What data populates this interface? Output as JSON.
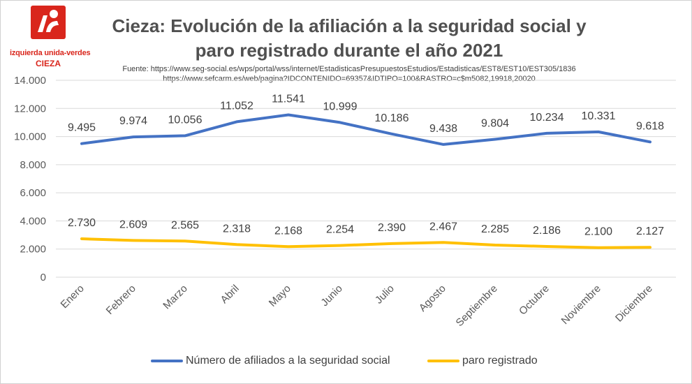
{
  "logo": {
    "line1": "izquierda unida-verdes",
    "line2": "CIEZA"
  },
  "chart_data": {
    "type": "line",
    "title": "Cieza: Evolución de la afiliación a la seguridad social y paro registrado durante el año 2021",
    "subtitle": [
      "Fuente: https://www.seg-social.es/wps/portal/wss/internet/EstadisticasPresupuestosEstudios/Estadisticas/EST8/EST10/EST305/1836",
      "https://www.sefcarm.es/web/pagina?IDCONTENIDO=69357&IDTIPO=100&RASTRO=c$m5082,19918,20020"
    ],
    "categories": [
      "Enero",
      "Febrero",
      "Marzo",
      "Abril",
      "Mayo",
      "Junio",
      "Julio",
      "Agosto",
      "Septiembre",
      "Octubre",
      "Noviembre",
      "Diciembre"
    ],
    "series": [
      {
        "name": "Número de afiliados a la seguridad social",
        "color": "#4472c4",
        "values": [
          9495,
          9974,
          10056,
          11052,
          11541,
          10999,
          10186,
          9438,
          9804,
          10234,
          10331,
          9618
        ],
        "labels": [
          "9.495",
          "9.974",
          "10.056",
          "11.052",
          "11.541",
          "10.999",
          "10.186",
          "9.438",
          "9.804",
          "10.234",
          "10.331",
          "9.618"
        ]
      },
      {
        "name": "paro registrado",
        "color": "#ffc000",
        "values": [
          2730,
          2609,
          2565,
          2318,
          2168,
          2254,
          2390,
          2467,
          2285,
          2186,
          2100,
          2127
        ],
        "labels": [
          "2.730",
          "2.609",
          "2.565",
          "2.318",
          "2.168",
          "2.254",
          "2.390",
          "2.467",
          "2.285",
          "2.186",
          "2.100",
          "2.127"
        ]
      }
    ],
    "y_ticks": [
      0,
      2000,
      4000,
      6000,
      8000,
      10000,
      12000,
      14000
    ],
    "y_tick_labels": [
      "0",
      "2.000",
      "4.000",
      "6.000",
      "8.000",
      "10.000",
      "12.000",
      "14.000"
    ],
    "ylim": [
      0,
      14000
    ],
    "grid": true,
    "legend_position": "bottom"
  }
}
